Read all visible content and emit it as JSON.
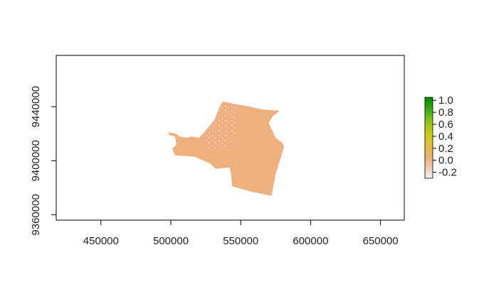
{
  "chart_data": {
    "type": "heatmap",
    "title": "",
    "xlabel": "",
    "ylabel": "",
    "xlim": [
      418000,
      667000
    ],
    "ylim": [
      9356000,
      9478000
    ],
    "x_ticks": [
      450000,
      500000,
      550000,
      600000,
      650000
    ],
    "y_ticks": [
      9360000,
      9400000,
      9440000
    ],
    "x_tick_labels": [
      "450000",
      "500000",
      "550000",
      "600000",
      "650000"
    ],
    "y_tick_labels": [
      "9360000",
      "9400000",
      "9440000"
    ],
    "legend": {
      "position": "right",
      "ticks": [
        1.0,
        0.8,
        0.6,
        0.4,
        0.2,
        0.0,
        -0.2
      ],
      "tick_labels": [
        "1.0",
        "0.8",
        "0.6",
        "0.4",
        "0.2",
        "0.0",
        "-0.2"
      ],
      "color_stops": [
        {
          "value": -0.3,
          "color": "#f2f2f2"
        },
        {
          "value": -0.1,
          "color": "#eec4a8"
        },
        {
          "value": 0.05,
          "color": "#eab07a"
        },
        {
          "value": 0.25,
          "color": "#e2c040"
        },
        {
          "value": 0.45,
          "color": "#c8c818"
        },
        {
          "value": 0.65,
          "color": "#8cc21a"
        },
        {
          "value": 0.85,
          "color": "#3aa81a"
        },
        {
          "value": 1.05,
          "color": "#008a00"
        }
      ]
    },
    "region": {
      "dominant_value": 0.0,
      "fill_color": "#edb07e",
      "speckle_color": "#f5cfc0",
      "outline": [
        [
          498000,
          9421000
        ],
        [
          504000,
          9420000
        ],
        [
          506000,
          9418000
        ],
        [
          511000,
          9417000
        ],
        [
          515000,
          9418000
        ],
        [
          520000,
          9417000
        ],
        [
          523000,
          9420000
        ],
        [
          527000,
          9425000
        ],
        [
          531000,
          9430000
        ],
        [
          533000,
          9435000
        ],
        [
          535000,
          9440000
        ],
        [
          537000,
          9444000
        ],
        [
          546000,
          9442000
        ],
        [
          557000,
          9440000
        ],
        [
          565000,
          9438000
        ],
        [
          578000,
          9437000
        ],
        [
          573000,
          9433000
        ],
        [
          570000,
          9428000
        ],
        [
          575000,
          9417000
        ],
        [
          580000,
          9413000
        ],
        [
          581000,
          9410000
        ],
        [
          578000,
          9400000
        ],
        [
          575000,
          9390000
        ],
        [
          572000,
          9374000
        ],
        [
          558000,
          9377000
        ],
        [
          544000,
          9381000
        ],
        [
          543000,
          9390000
        ],
        [
          542000,
          9395000
        ],
        [
          532000,
          9394000
        ],
        [
          528000,
          9398000
        ],
        [
          517000,
          9403000
        ],
        [
          503000,
          9404000
        ],
        [
          501000,
          9409000
        ],
        [
          504000,
          9412000
        ],
        [
          503000,
          9418000
        ],
        [
          499000,
          9419000
        ]
      ]
    },
    "grid": false
  }
}
